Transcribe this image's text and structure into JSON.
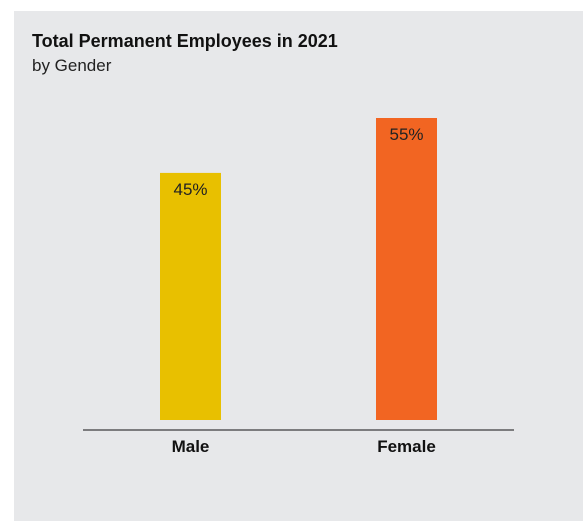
{
  "chart_data": {
    "type": "bar",
    "title": "Total Permanent Employees in 2021",
    "subtitle": "by Gender",
    "categories": [
      "Male",
      "Female"
    ],
    "values": [
      45,
      55
    ],
    "value_labels": [
      "45%",
      "55%"
    ],
    "colors": [
      "#e8c000",
      "#f26522"
    ],
    "ylim": [
      0,
      55
    ],
    "grid": false,
    "legend": "none"
  }
}
